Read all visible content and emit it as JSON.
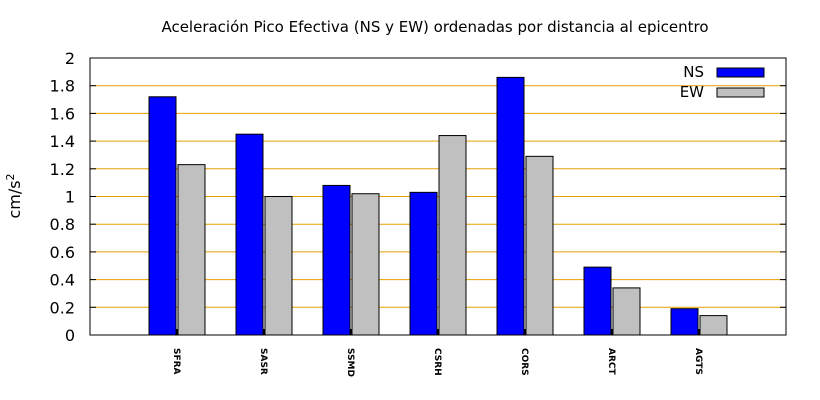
{
  "chart_data": {
    "type": "bar",
    "title": "Aceleración Pico Efectiva (NS y EW) ordenadas por distancia al epicentro",
    "ylabel": "cm/s",
    "ylabel_superscript": "2",
    "xlabel": "",
    "ylim": [
      0,
      2
    ],
    "yticks": [
      "0",
      "0.2",
      "0.4",
      "0.6",
      "0.8",
      "1",
      "1.2",
      "1.4",
      "1.6",
      "1.8",
      "2"
    ],
    "grid": "horizontal",
    "legend_position": "top-right",
    "categories": [
      "SFRA",
      "SASR",
      "SSMD",
      "CSRH",
      "CORS",
      "ARCT",
      "AGTS"
    ],
    "series": [
      {
        "name": "NS",
        "color": "#0000ff",
        "values": [
          1.72,
          1.45,
          1.08,
          1.03,
          1.86,
          0.49,
          0.19
        ]
      },
      {
        "name": "EW",
        "color": "#c0c0c0",
        "values": [
          1.23,
          1.0,
          1.02,
          1.44,
          1.29,
          0.34,
          0.14
        ]
      }
    ],
    "grid_color": "#e8a000"
  }
}
